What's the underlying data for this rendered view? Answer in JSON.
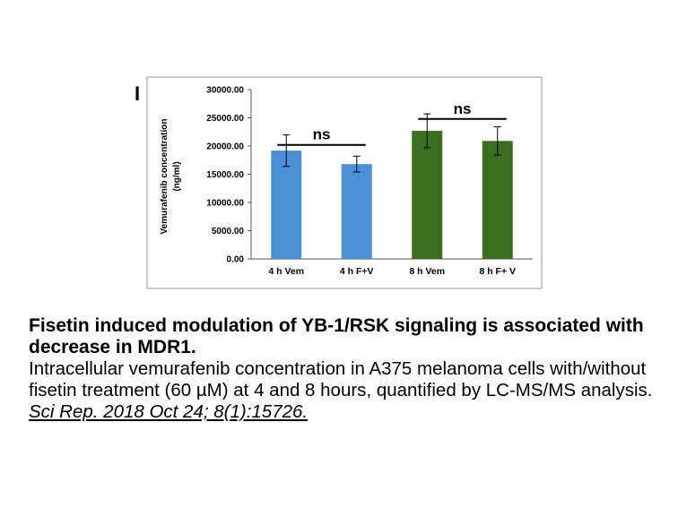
{
  "panel_label": "I",
  "chart_data": {
    "type": "bar",
    "categories": [
      "4 h Vem",
      "4 h F+V",
      "8 h Vem",
      "8 h F+ V"
    ],
    "values": [
      19200,
      16800,
      22700,
      20900
    ],
    "errors": [
      2800,
      1400,
      3000,
      2500
    ],
    "colors": [
      "#4a90d9",
      "#4a90d9",
      "#3b6e1f",
      "#3b6e1f"
    ],
    "ylabel_line1": "Vemurafenib concentration",
    "ylabel_line2": "(ng/ml)",
    "ylim": [
      0,
      30000
    ],
    "yticks": [
      0,
      5000,
      10000,
      15000,
      20000,
      25000,
      30000
    ],
    "ytick_labels": [
      "0.00",
      "5000.00",
      "10000.00",
      "15000.00",
      "20000.00",
      "25000.00",
      "30000.00"
    ],
    "grid": false,
    "significance": [
      {
        "from": 0,
        "to": 1,
        "label": "ns",
        "level": 20200
      },
      {
        "from": 2,
        "to": 3,
        "label": "ns",
        "level": 24800
      }
    ]
  },
  "caption": {
    "title": "Fisetin induced modulation of YB-1/RSK signaling is associated with decrease in MDR1.",
    "body": "Intracellular vemurafenib concentration in A375 melanoma cells with/without fisetin treatment (60 µM) at 4 and 8 hours, quantified by LC-MS/MS analysis.",
    "citation": "Sci Rep. 2018 Oct 24; 8(1):15726."
  }
}
